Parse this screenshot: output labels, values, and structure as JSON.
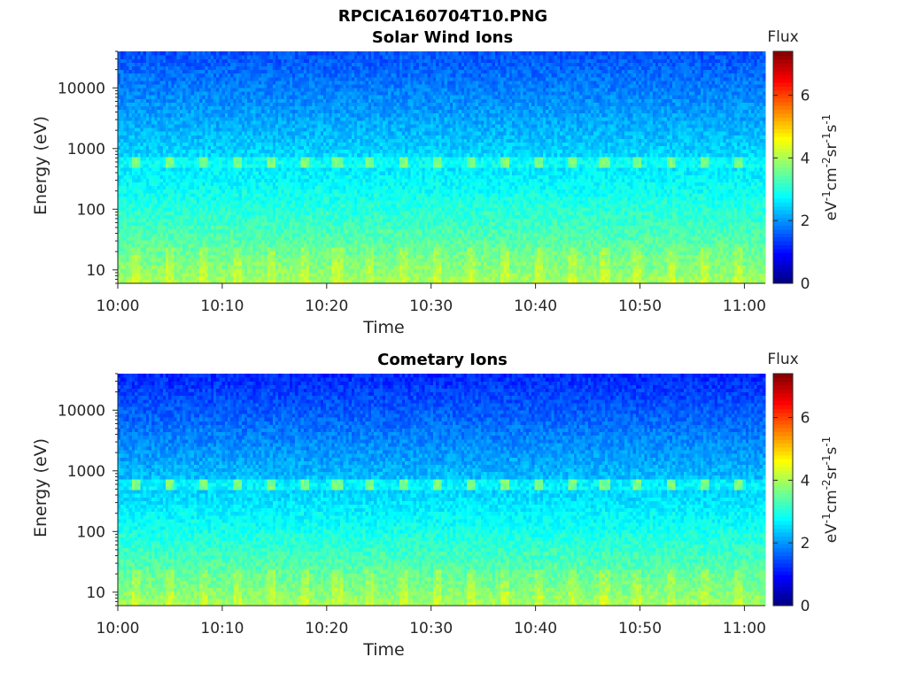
{
  "figure_title": "RPCICA160704T10.PNG",
  "chart_data": [
    {
      "type": "heatmap",
      "title": "Solar Wind Ions",
      "xlabel": "Time",
      "ylabel": "Energy (eV)",
      "yscale": "log",
      "x_tick_labels": [
        "10:00",
        "10:10",
        "10:20",
        "10:30",
        "10:40",
        "10:50",
        "11:00"
      ],
      "y_tick_labels": [
        "10",
        "100",
        "1000",
        "10000"
      ],
      "xlim": [
        "10:00",
        "11:02"
      ],
      "ylim": [
        6,
        40000
      ],
      "colorbar": {
        "title": "Flux",
        "units_parts": [
          "eV",
          "-1",
          "cm",
          "-2",
          "sr",
          "-1",
          "s",
          "-1"
        ],
        "ticks": [
          "0",
          "2",
          "4",
          "6"
        ],
        "range": [
          0,
          7.4
        ],
        "colormap": "jet"
      },
      "features": {
        "peak_energy_eV": 600,
        "peak_level": 3.6,
        "pulse_period_minutes": 3.2,
        "low_energy_level": 4.0,
        "high_energy_level": 1.5
      }
    },
    {
      "type": "heatmap",
      "title": "Cometary Ions",
      "xlabel": "Time",
      "ylabel": "Energy (eV)",
      "yscale": "log",
      "x_tick_labels": [
        "10:00",
        "10:10",
        "10:20",
        "10:30",
        "10:40",
        "10:50",
        "11:00"
      ],
      "y_tick_labels": [
        "10",
        "100",
        "1000",
        "10000"
      ],
      "xlim": [
        "10:00",
        "11:02"
      ],
      "ylim": [
        6,
        40000
      ],
      "colorbar": {
        "title": "Flux",
        "units_parts": [
          "eV",
          "-1",
          "cm",
          "-2",
          "sr",
          "-1",
          "s",
          "-1"
        ],
        "ticks": [
          "0",
          "2",
          "4",
          "6"
        ],
        "range": [
          0,
          7.4
        ],
        "colormap": "jet"
      },
      "features": {
        "peak_energy_eV": 600,
        "peak_level": 3.6,
        "pulse_period_minutes": 3.2,
        "low_energy_level": 4.0,
        "high_energy_level": 1.2
      }
    }
  ]
}
